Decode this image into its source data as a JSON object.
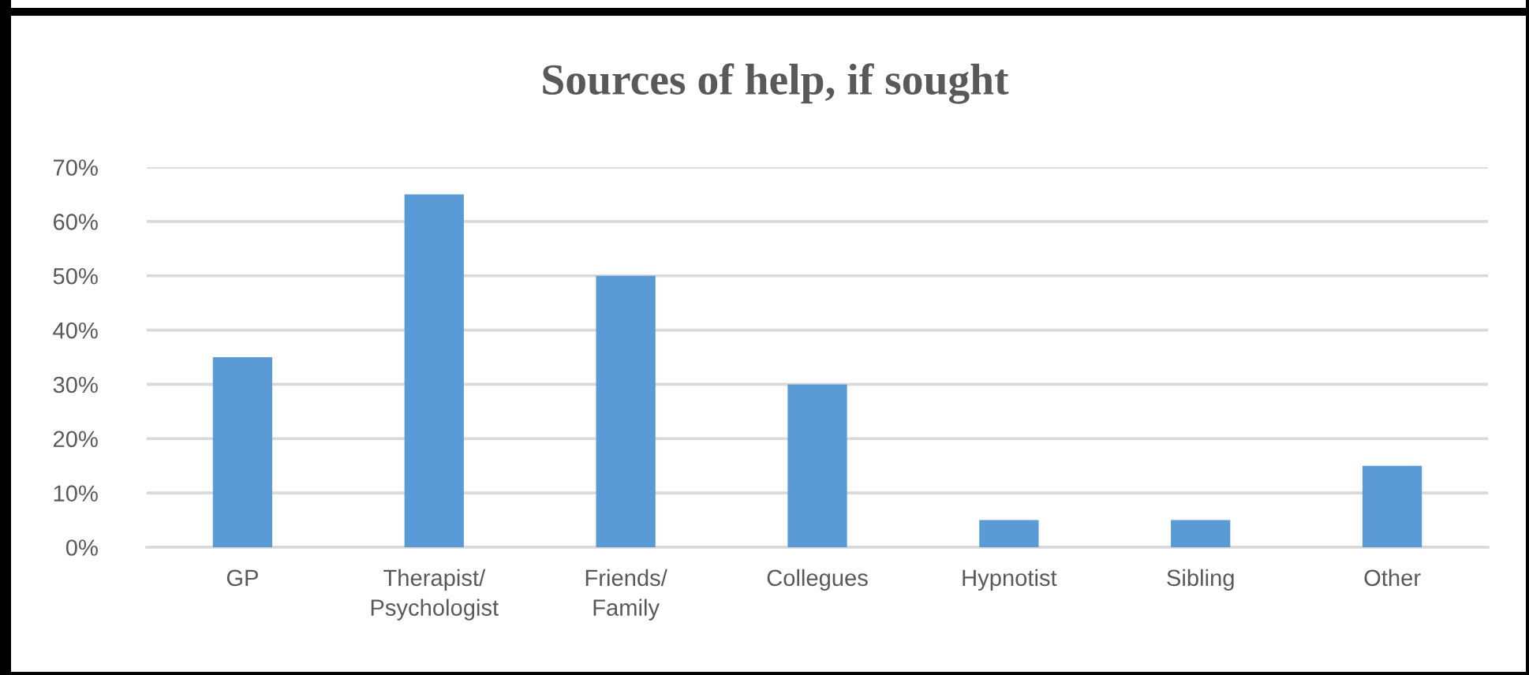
{
  "chart_data": {
    "type": "bar",
    "title": "Sources of help, if sought",
    "categories": [
      "GP",
      "Therapist/\nPsychologist",
      "Friends/\nFamily",
      "Collegues",
      "Hypnotist",
      "Sibling",
      "Other"
    ],
    "values": [
      35,
      65,
      50,
      30,
      5,
      5,
      15
    ],
    "color": "#5b9bd5",
    "ylim": [
      0,
      70
    ],
    "yticks": [
      {
        "value": 0,
        "label": "0%"
      },
      {
        "value": 10,
        "label": "10%"
      },
      {
        "value": 20,
        "label": "20%"
      },
      {
        "value": 30,
        "label": "30%"
      },
      {
        "value": 40,
        "label": "40%"
      },
      {
        "value": 50,
        "label": "50%"
      },
      {
        "value": 60,
        "label": "60%"
      },
      {
        "value": 70,
        "label": "70%"
      }
    ],
    "grid": "y"
  }
}
